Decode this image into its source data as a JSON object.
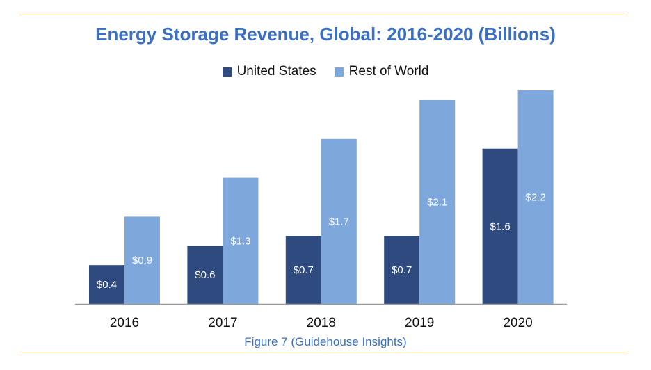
{
  "header": {
    "title": "Energy Storage Revenue, Global: 2016-2020 (Billions)"
  },
  "footer": {
    "caption": "Figure 7 (Guidehouse Insights)"
  },
  "chart_data": {
    "type": "bar",
    "title": "Energy Storage Revenue, Global: 2016-2020 (Billions)",
    "xlabel": "",
    "ylabel": "",
    "categories": [
      "2016",
      "2017",
      "2018",
      "2019",
      "2020"
    ],
    "series": [
      {
        "name": "United States",
        "color": "#2e4a7f",
        "values": [
          0.4,
          0.6,
          0.7,
          0.7,
          1.6
        ],
        "labels": [
          "$0.4",
          "$0.6",
          "$0.7",
          "$0.7",
          "$1.6"
        ]
      },
      {
        "name": "Rest of World",
        "color": "#7ea8dc",
        "values": [
          0.9,
          1.3,
          1.7,
          2.1,
          2.2
        ],
        "labels": [
          "$0.9",
          "$1.3",
          "$1.7",
          "$2.1",
          "$2.2"
        ]
      }
    ],
    "ylim": [
      0,
      2.2
    ],
    "grid": false,
    "legend_position": "top-center"
  }
}
